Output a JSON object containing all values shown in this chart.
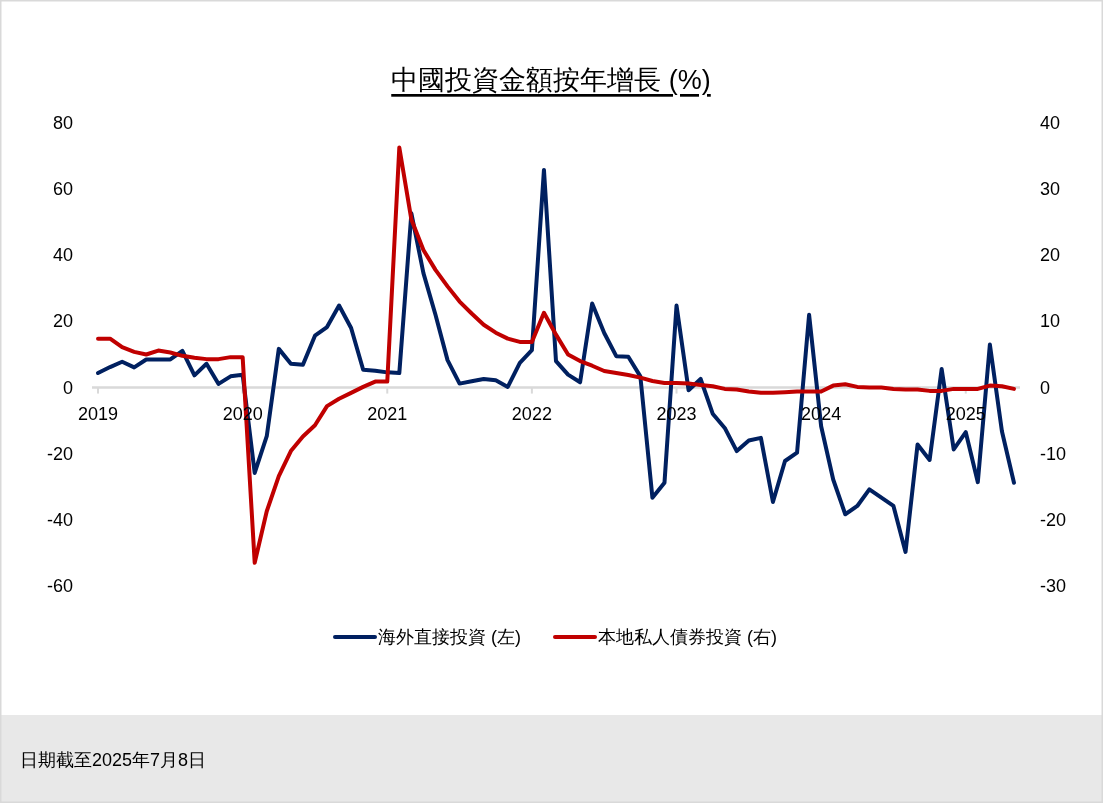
{
  "chart_data": {
    "type": "line",
    "title": "中國投資金額按年增長 (%)",
    "x": [
      "2019-01",
      "2019-02",
      "2019-03",
      "2019-04",
      "2019-05",
      "2019-06",
      "2019-07",
      "2019-08",
      "2019-09",
      "2019-10",
      "2019-11",
      "2019-12",
      "2020-01",
      "2020-02",
      "2020-03",
      "2020-04",
      "2020-05",
      "2020-06",
      "2020-07",
      "2020-08",
      "2020-09",
      "2020-10",
      "2020-11",
      "2020-12",
      "2021-01",
      "2021-02",
      "2021-03",
      "2021-04",
      "2021-05",
      "2021-06",
      "2021-07",
      "2021-08",
      "2021-09",
      "2021-10",
      "2021-11",
      "2021-12",
      "2022-01",
      "2022-02",
      "2022-03",
      "2022-04",
      "2022-05",
      "2022-06",
      "2022-07",
      "2022-08",
      "2022-09",
      "2022-10",
      "2022-11",
      "2022-12",
      "2023-01",
      "2023-02",
      "2023-03",
      "2023-04",
      "2023-05",
      "2023-06",
      "2023-07",
      "2023-08",
      "2023-09",
      "2023-10",
      "2023-11",
      "2023-12",
      "2024-01",
      "2024-02",
      "2024-03",
      "2024-04",
      "2024-05",
      "2024-06",
      "2024-07",
      "2024-08",
      "2024-09",
      "2024-10",
      "2024-11",
      "2024-12",
      "2025-01",
      "2025-02",
      "2025-03",
      "2025-04",
      "2025-05"
    ],
    "xlim": [
      "2018-12-16",
      "2025-05-16"
    ],
    "xticks": [
      "2019",
      "2020",
      "2021",
      "2022",
      "2023",
      "2024",
      "2025"
    ],
    "ylim": [
      -60,
      80
    ],
    "yticks": [
      -60,
      -40,
      -20,
      0,
      20,
      40,
      60,
      80
    ],
    "y2lim": [
      -30,
      40
    ],
    "y2ticks": [
      -30,
      -20,
      -10,
      0,
      10,
      20,
      30,
      40
    ],
    "series": [
      {
        "name": "海外直接投資 (左)",
        "color": "#002060",
        "axis": "y",
        "values": [
          4.4,
          6.2,
          7.8,
          6.1,
          8.5,
          8.5,
          8.5,
          11.1,
          3.7,
          7.2,
          1.1,
          3.4,
          3.9,
          -25.8,
          -14.7,
          11.7,
          7.2,
          6.9,
          15.7,
          18.3,
          24.8,
          18.0,
          5.4,
          5.1,
          4.6,
          4.4,
          52.7,
          34.6,
          22.0,
          8.3,
          1.2,
          1.9,
          2.6,
          2.2,
          0.2,
          7.5,
          11.3,
          65.8,
          8.0,
          3.9,
          1.6,
          25.4,
          16.5,
          9.5,
          9.3,
          3.4,
          -33.3,
          -28.8,
          24.8,
          -0.8,
          2.6,
          -7.9,
          -12.2,
          -19.2,
          -16.0,
          -15.2,
          -34.6,
          -22.2,
          -19.7,
          22.0,
          -11.7,
          -27.8,
          -38.3,
          -35.8,
          -30.8,
          -33.3,
          -35.8,
          -49.7,
          -17.2,
          -21.9,
          5.6,
          -18.7,
          -13.5,
          -28.6,
          13.0,
          -13.2,
          -28.8
        ]
      },
      {
        "name": "本地私人債券投資 (右)",
        "color": "#c00000",
        "axis": "y2",
        "values": [
          7.4,
          7.4,
          6.1,
          5.4,
          5.0,
          5.6,
          5.3,
          4.8,
          4.5,
          4.3,
          4.3,
          4.6,
          4.6,
          -26.5,
          -18.7,
          -13.4,
          -9.6,
          -7.4,
          -5.7,
          -2.8,
          -1.7,
          -0.8,
          0.1,
          0.9,
          0.9,
          36.3,
          25.4,
          20.8,
          17.8,
          15.3,
          13.0,
          11.2,
          9.5,
          8.3,
          7.4,
          6.9,
          6.9,
          11.3,
          8.0,
          5.0,
          4.0,
          3.3,
          2.5,
          2.2,
          1.9,
          1.5,
          1.0,
          0.7,
          0.7,
          0.6,
          0.4,
          0.2,
          -0.2,
          -0.3,
          -0.6,
          -0.8,
          -0.8,
          -0.7,
          -0.6,
          -0.6,
          -0.6,
          0.3,
          0.5,
          0.1,
          0.0,
          0.0,
          -0.2,
          -0.3,
          -0.3,
          -0.5,
          -0.5,
          -0.2,
          -0.2,
          -0.2,
          0.3,
          0.2,
          -0.2
        ]
      }
    ],
    "legend": "bottom",
    "grid": false,
    "annotations": [
      "日期截至2025年7月8日"
    ]
  }
}
